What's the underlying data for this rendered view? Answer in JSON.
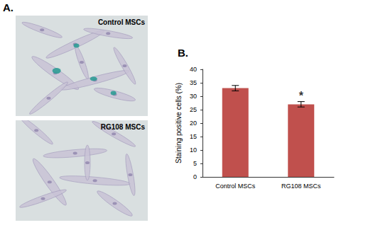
{
  "figure": {
    "panels": [
      {
        "label": "A.",
        "images": [
          {
            "caption": "Control MSCs"
          },
          {
            "caption": "RG108 MSCs"
          }
        ]
      },
      {
        "label": "B."
      }
    ]
  },
  "chart_data": {
    "type": "bar",
    "ylabel": "Staining positive cells (%)",
    "categories": [
      "Control MSCs",
      "RG108 MSCs"
    ],
    "values": [
      33,
      27
    ],
    "errors": [
      1,
      1
    ],
    "color": "#c0504d",
    "ylim": [
      0,
      40
    ],
    "yticks": [
      0,
      5,
      10,
      15,
      20,
      25,
      30,
      35,
      40
    ],
    "grid": false,
    "annotations": [
      {
        "text": "*",
        "category": "RG108 MSCs"
      }
    ]
  }
}
